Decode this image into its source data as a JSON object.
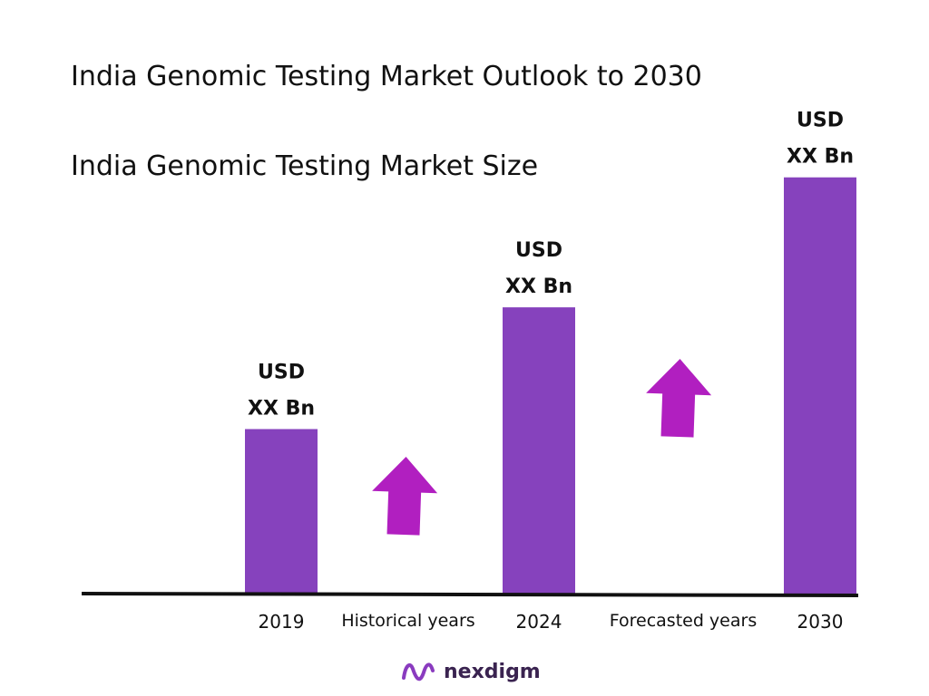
{
  "title": "India Genomic Testing Market Outlook to 2030",
  "subtitle": "India Genomic Testing Market Size",
  "brand": {
    "name": "nexdigm",
    "icon": "nexdigm-wave-logo-icon",
    "text_color": "#3a2350",
    "icon_color": "#8a3bbf"
  },
  "colors": {
    "bar": "#8642bd",
    "arrow": "#b11fc0",
    "axis": "#111111"
  },
  "chart_data": {
    "type": "bar",
    "categories": [
      "2019",
      "2024",
      "2030"
    ],
    "values": [
      1.0,
      1.74,
      2.53
    ],
    "value_labels": [
      [
        "USD",
        "XX Bn"
      ],
      [
        "USD",
        "XX Bn"
      ],
      [
        "USD",
        "XX Bn"
      ]
    ],
    "segment_labels": [
      "Historical years",
      "Forecasted years"
    ],
    "title": "India Genomic Testing Market Outlook to 2030",
    "subtitle": "India Genomic Testing Market Size",
    "ylim": [
      0,
      2.6
    ],
    "grid": false,
    "legend": "none"
  }
}
